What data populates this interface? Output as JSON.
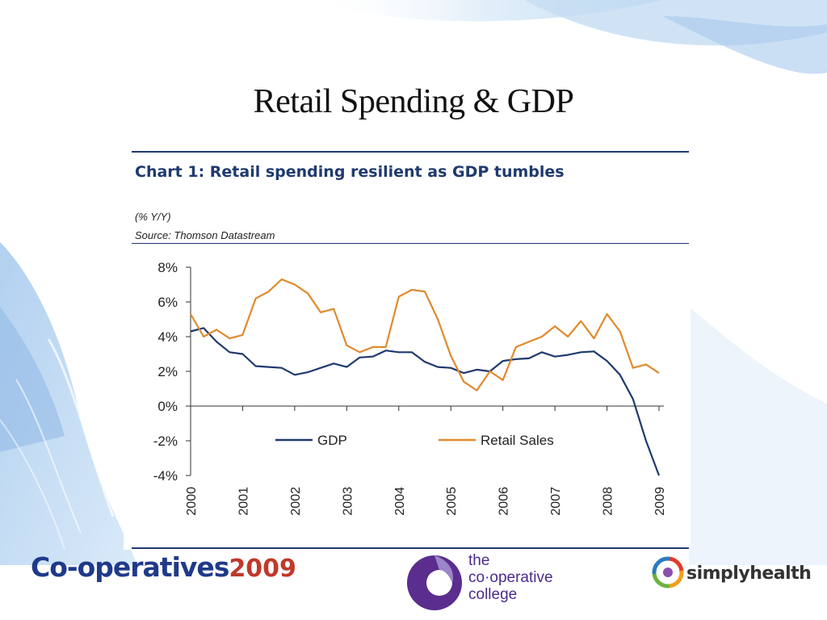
{
  "slide": {
    "title": "Retail Spending & GDP"
  },
  "chart_data": {
    "type": "line",
    "title": "Chart 1: Retail spending resilient as GDP tumbles",
    "unit_note": "(% Y/Y)",
    "source": "Source: Thomson Datastream",
    "xlim": [
      2000,
      2009
    ],
    "ylim": [
      -4,
      8
    ],
    "x_ticks": [
      "2000",
      "2001",
      "2002",
      "2003",
      "2004",
      "2005",
      "2006",
      "2007",
      "2008",
      "2009"
    ],
    "y_ticks": [
      {
        "value": 8,
        "label": "8%"
      },
      {
        "value": 6,
        "label": "6%"
      },
      {
        "value": 4,
        "label": "4%"
      },
      {
        "value": 2,
        "label": "2%"
      },
      {
        "value": 0,
        "label": "0%"
      },
      {
        "value": -2,
        "label": "-2%"
      },
      {
        "value": -4,
        "label": "-4%"
      }
    ],
    "legend_position": "inside-center",
    "series": [
      {
        "name": "GDP",
        "color": "#1f3a6e",
        "x": [
          2000,
          2000.25,
          2000.5,
          2000.75,
          2001,
          2001.25,
          2001.5,
          2001.75,
          2002,
          2002.25,
          2002.5,
          2002.75,
          2003,
          2003.25,
          2003.5,
          2003.75,
          2004,
          2004.25,
          2004.5,
          2004.75,
          2005,
          2005.25,
          2005.5,
          2005.75,
          2006,
          2006.25,
          2006.5,
          2006.75,
          2007,
          2007.25,
          2007.5,
          2007.75,
          2008,
          2008.25,
          2008.5,
          2008.75,
          2009
        ],
        "y": [
          4.3,
          4.5,
          3.7,
          3.1,
          3.0,
          2.3,
          2.25,
          2.2,
          1.8,
          1.95,
          2.2,
          2.45,
          2.25,
          2.8,
          2.85,
          3.2,
          3.1,
          3.1,
          2.55,
          2.25,
          2.2,
          1.9,
          2.1,
          2.0,
          2.6,
          2.7,
          2.75,
          3.1,
          2.85,
          2.95,
          3.1,
          3.15,
          2.6,
          1.8,
          0.4,
          -2.0,
          -4.0
        ]
      },
      {
        "name": "Retail Sales",
        "color": "#e08a2c",
        "x": [
          2000,
          2000.25,
          2000.5,
          2000.75,
          2001,
          2001.25,
          2001.5,
          2001.75,
          2002,
          2002.25,
          2002.5,
          2002.75,
          2003,
          2003.25,
          2003.5,
          2003.75,
          2004,
          2004.25,
          2004.5,
          2004.75,
          2005,
          2005.25,
          2005.5,
          2005.75,
          2006,
          2006.25,
          2006.5,
          2006.75,
          2007,
          2007.25,
          2007.5,
          2007.75,
          2008,
          2008.25,
          2008.5,
          2008.75,
          2009
        ],
        "y": [
          5.3,
          4.0,
          4.4,
          3.9,
          4.1,
          6.2,
          6.6,
          7.3,
          7.0,
          6.5,
          5.4,
          5.6,
          3.5,
          3.1,
          3.4,
          3.4,
          6.3,
          6.7,
          6.6,
          5.0,
          2.9,
          1.4,
          0.9,
          2.0,
          1.5,
          3.4,
          3.7,
          4.0,
          4.6,
          4.0,
          4.9,
          3.9,
          5.3,
          4.3,
          2.2,
          2.4,
          1.9
        ]
      }
    ]
  },
  "footer": {
    "logo_coop_text": "Co-operatives",
    "logo_coop_year": "2009",
    "logo_college_line1": "the",
    "logo_college_line2": "co·operative",
    "logo_college_line3": "college",
    "logo_sh_text": "simplyhealth",
    "colors": {
      "coop_blue": "#1f3a8a",
      "coop_red": "#c0392b",
      "college_purple": "#4a2a8a"
    }
  }
}
